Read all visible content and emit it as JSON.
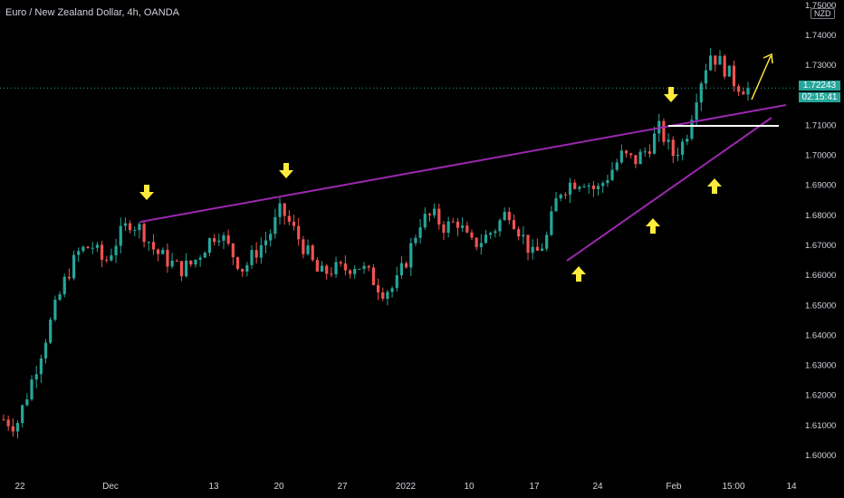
{
  "header": {
    "title": "Euro / New Zealand Dollar, 4h, OANDA",
    "currency_badge": "NZD"
  },
  "price_tag": {
    "price": "1.72243",
    "countdown": "02:15:41",
    "color": "#26a69a"
  },
  "colors": {
    "up": "#26a69a",
    "down": "#ef5350",
    "trendline": "#9c27b0",
    "arrow": "#ffeb3b",
    "support": "#ffffff",
    "axis_text": "#d1d4dc"
  },
  "chart_data": {
    "type": "candlestick",
    "ylim": [
      1.595,
      1.745
    ],
    "y_ticks": [
      "1.60000",
      "1.61000",
      "1.62000",
      "1.63000",
      "1.64000",
      "1.65000",
      "1.66000",
      "1.67000",
      "1.68000",
      "1.69000",
      "1.70000",
      "1.71000",
      "1.72000",
      "1.73000",
      "1.74000",
      "1.75000"
    ],
    "x_ticks": [
      "22",
      "Dec",
      "13",
      "20",
      "27",
      "2022",
      "10",
      "17",
      "24",
      "Feb",
      "15:00",
      "14"
    ],
    "close_path": [
      1.612,
      1.61,
      1.622,
      1.635,
      1.648,
      1.66,
      1.668,
      1.67,
      1.664,
      1.672,
      1.678,
      1.675,
      1.668,
      1.665,
      1.662,
      1.664,
      1.67,
      1.675,
      1.668,
      1.662,
      1.668,
      1.673,
      1.682,
      1.675,
      1.668,
      1.66,
      1.662,
      1.662,
      1.664,
      1.66,
      1.655,
      1.656,
      1.666,
      1.678,
      1.68,
      1.676,
      1.678,
      1.67,
      1.672,
      1.676,
      1.682,
      1.674,
      1.666,
      1.672,
      1.688,
      1.691,
      1.692,
      1.688,
      1.694,
      1.7,
      1.698,
      1.702,
      1.709,
      1.7,
      1.705,
      1.722,
      1.734,
      1.73,
      1.724,
      1.722
    ],
    "overlays": {
      "upper_trendline": [
        [
          1.677,
          1.715
        ]
      ],
      "lower_trendline": [
        [
          1.664,
          1.713
        ]
      ],
      "support_level": 1.71,
      "down_arrows": 3,
      "up_arrows": 4
    }
  }
}
